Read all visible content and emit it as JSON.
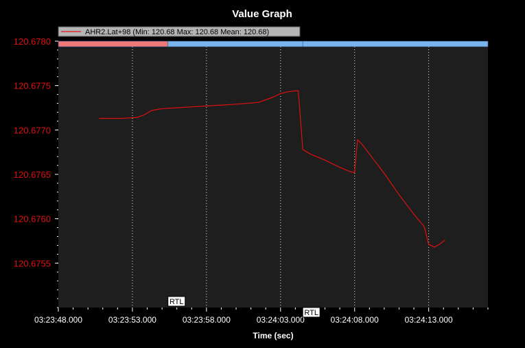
{
  "window": {
    "title": "Value Graph"
  },
  "colors": {
    "background": "#000000",
    "plot_area": "#1e1e1e",
    "series": "#e01010",
    "y_tick_labels": "#e01010",
    "x_tick_labels": "#ffffff",
    "grid": "#ffffff",
    "mode_bar_1": "#f07878",
    "mode_bar_2": "#7ab4f0"
  },
  "chart_data": {
    "type": "line",
    "title": "Value Graph",
    "xlabel": "Time (sec)",
    "ylabel": "",
    "x_ticks": [
      "03:23:48.000",
      "03:23:53.000",
      "03:23:58.000",
      "03:24:03.000",
      "03:24:08.000",
      "03:24:13.000"
    ],
    "x_tick_seconds": [
      0,
      5,
      10,
      15,
      20,
      25
    ],
    "xlim_seconds": [
      0,
      29
    ],
    "y_ticks": [
      "120.6780",
      "120.6775",
      "120.6770",
      "120.6765",
      "120.6760",
      "120.6755"
    ],
    "ylim": [
      120.675,
      120.678
    ],
    "grid": true,
    "legend_position": "top-left",
    "series": [
      {
        "name": "AHR2.Lat+98  (Min: 120.68 Max: 120.68 Mean: 120.68)",
        "x": [
          2.75,
          4.2,
          5.3,
          5.8,
          6.3,
          7.0,
          8.0,
          9.0,
          10.0,
          11.0,
          12.0,
          13.5,
          14.5,
          15.0,
          15.5,
          16.0,
          16.2,
          16.5,
          17.0,
          18.0,
          19.0,
          19.7,
          20.0,
          20.2,
          20.5,
          21.0,
          22.0,
          23.0,
          24.0,
          24.7,
          25.0,
          25.4,
          25.8,
          26.1
        ],
        "y": [
          120.67713,
          120.67713,
          120.67714,
          120.67717,
          120.67722,
          120.67724,
          120.67725,
          120.67726,
          120.67727,
          120.67728,
          120.67729,
          120.67731,
          120.67737,
          120.67741,
          120.67743,
          120.67744,
          120.67744,
          120.67678,
          120.67673,
          120.67666,
          120.67658,
          120.67653,
          120.67652,
          120.67689,
          120.67684,
          120.67673,
          120.67651,
          120.67627,
          120.67605,
          120.67591,
          120.67571,
          120.67568,
          120.67572,
          120.67576
        ]
      }
    ],
    "mode_bands": [
      {
        "start_seconds": 0,
        "end_seconds": 7.4,
        "color": "#f07878"
      },
      {
        "start_seconds": 7.4,
        "end_seconds": 16.5,
        "color": "#7ab4f0"
      },
      {
        "start_seconds": 16.5,
        "end_seconds": 29,
        "color": "#7ab4f0"
      }
    ],
    "annotations": [
      {
        "text": "RTL",
        "x_seconds": 7.4,
        "position": "low"
      },
      {
        "text": "RTL",
        "x_seconds": 16.5,
        "position": "bottom"
      }
    ]
  }
}
